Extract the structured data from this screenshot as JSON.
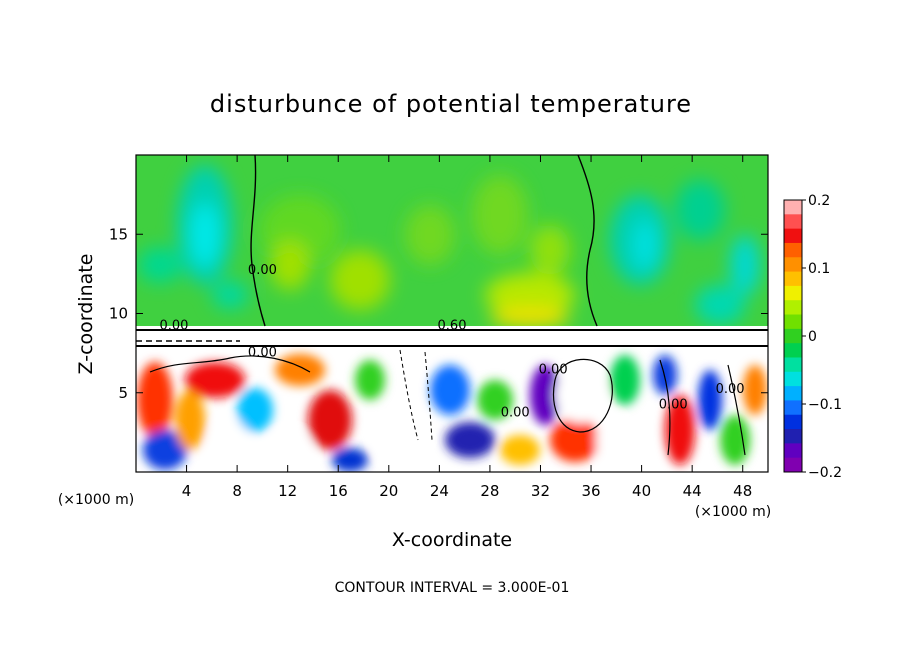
{
  "chart_data": {
    "type": "heatmap",
    "title": "disturbunce of potential temperature",
    "xlabel": "X-coordinate",
    "ylabel": "Z-coordinate",
    "x_unit_left": "(×1000 m)",
    "x_unit_right": "(×1000 m)",
    "footer": "CONTOUR INTERVAL = 3.000E-01",
    "xlim": [
      0,
      50
    ],
    "ylim": [
      0,
      20
    ],
    "x_ticks": [
      "4",
      "8",
      "12",
      "16",
      "20",
      "24",
      "28",
      "32",
      "36",
      "40",
      "44",
      "48"
    ],
    "x_tick_values": [
      4,
      8,
      12,
      16,
      20,
      24,
      28,
      32,
      36,
      40,
      44,
      48
    ],
    "y_ticks": [
      "5",
      "10",
      "15"
    ],
    "y_tick_values": [
      5,
      10,
      15
    ],
    "colorbar": {
      "range": [
        -0.2,
        0.2
      ],
      "tick_labels": [
        "0.2",
        "0.1",
        "0",
        "−0.1",
        "−0.2"
      ],
      "tick_values": [
        0.2,
        0.1,
        0,
        -0.1,
        -0.2
      ],
      "colors_top_to_bottom": [
        "#ffb0b0",
        "#ff5050",
        "#f01010",
        "#ff6000",
        "#ff9000",
        "#ffc000",
        "#f0f000",
        "#b0f000",
        "#70e000",
        "#30d020",
        "#00d050",
        "#00e0a0",
        "#00e0e0",
        "#00b0ff",
        "#1070ff",
        "#0030e0",
        "#2020b0",
        "#6000c0",
        "#8000b0"
      ]
    },
    "contour_labels": [
      {
        "text": "0.00",
        "x": 10,
        "y": 12.5
      },
      {
        "text": "0.60",
        "x": 25,
        "y": 9.0
      },
      {
        "text": "0.00",
        "x": 3,
        "y": 9.0
      },
      {
        "text": "0.00",
        "x": 10,
        "y": 7.3
      },
      {
        "text": "0.00",
        "x": 30,
        "y": 3.5
      },
      {
        "text": "0.00",
        "x": 33,
        "y": 6.2
      },
      {
        "text": "0.00",
        "x": 42.5,
        "y": 4.0
      },
      {
        "text": "0.00",
        "x": 47,
        "y": 5.0
      }
    ]
  }
}
